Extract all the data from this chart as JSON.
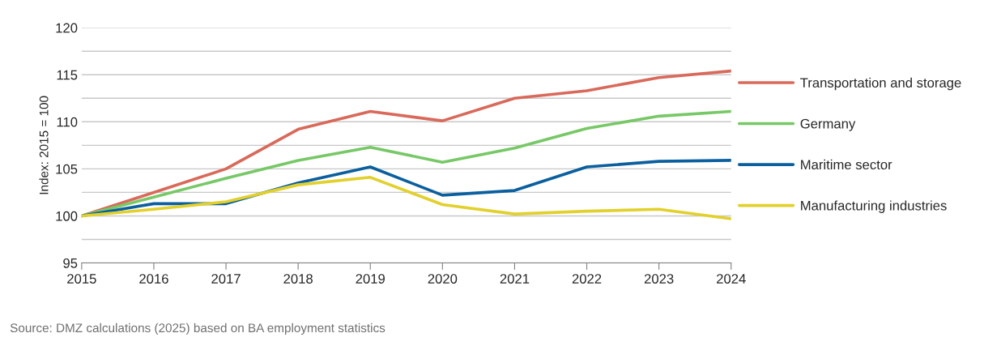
{
  "chart_data": {
    "type": "line",
    "ylabel": "Index: 2015 = 100",
    "categories": [
      "2015",
      "2016",
      "2017",
      "2018",
      "2019",
      "2020",
      "2021",
      "2022",
      "2023",
      "2024"
    ],
    "series": [
      {
        "name": "Transportation and storage",
        "color": "#d9695a",
        "values": [
          100,
          102.5,
          105.0,
          109.2,
          111.1,
          110.1,
          112.5,
          113.3,
          114.7,
          115.4
        ]
      },
      {
        "name": "Germany",
        "color": "#77c866",
        "values": [
          100,
          102.0,
          104.0,
          105.9,
          107.3,
          105.7,
          107.2,
          109.3,
          110.6,
          111.1
        ]
      },
      {
        "name": "Maritime sector",
        "color": "#0a5f9e",
        "values": [
          100,
          101.3,
          101.3,
          103.5,
          105.2,
          102.2,
          102.7,
          105.2,
          105.8,
          105.9
        ]
      },
      {
        "name": "Manufacturing industries",
        "color": "#e2d02c",
        "values": [
          100,
          100.7,
          101.5,
          103.3,
          104.1,
          101.2,
          100.2,
          100.5,
          100.7,
          99.7
        ]
      }
    ],
    "ylim": [
      95,
      120
    ],
    "yticks": [
      95,
      {
        "value": 97.5,
        "label": null
      },
      100,
      {
        "value": 102.5,
        "label": null
      },
      105,
      {
        "value": 107.5,
        "label": null
      },
      110,
      {
        "value": 112.5,
        "label": null
      },
      115,
      {
        "value": 117.5,
        "label": null
      },
      120
    ],
    "grid": "y",
    "legend": "right",
    "marker": "none",
    "line_style": "solid",
    "annotations": [
      "Source: DMZ calculations (2025) based on BA employment statistics"
    ]
  }
}
